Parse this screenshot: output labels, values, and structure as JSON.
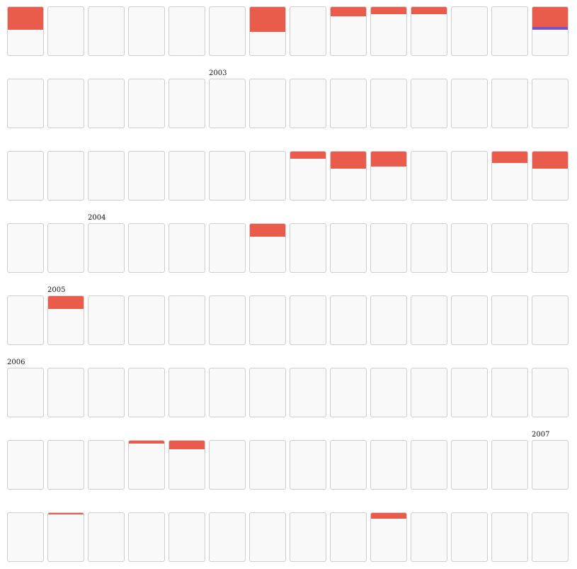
{
  "chart_data": {
    "type": "heatmap",
    "title": "",
    "columns": 14,
    "rows": 8,
    "colors": {
      "primary": "#e95c4b",
      "secondary": "#7b52c3",
      "cell_background": "#f9f9f9",
      "cell_border": "#cdcdcd"
    },
    "values": [
      [
        0.46,
        0,
        0,
        0,
        0,
        0,
        0.5,
        0,
        0.19,
        0.14,
        0.14,
        0,
        0,
        0.4
      ],
      [
        0,
        0,
        0,
        0,
        0,
        0,
        0,
        0,
        0,
        0,
        0,
        0,
        0,
        0
      ],
      [
        0,
        0,
        0,
        0,
        0,
        0,
        0,
        0.14,
        0.34,
        0.3,
        0,
        0,
        0.23,
        0.34
      ],
      [
        0,
        0,
        0,
        0,
        0,
        0,
        0.26,
        0,
        0,
        0,
        0,
        0,
        0,
        0
      ],
      [
        0,
        0.26,
        0,
        0,
        0,
        0,
        0,
        0,
        0,
        0,
        0,
        0,
        0,
        0
      ],
      [
        0,
        0,
        0,
        0,
        0,
        0,
        0,
        0,
        0,
        0,
        0,
        0,
        0,
        0
      ],
      [
        0,
        0,
        0,
        0.06,
        0.17,
        0,
        0,
        0,
        0,
        0,
        0,
        0,
        0,
        0
      ],
      [
        0,
        0.03,
        0,
        0,
        0,
        0,
        0,
        0,
        0,
        0.11,
        0,
        0,
        0,
        0
      ]
    ],
    "secondary_values": [
      [
        0,
        0,
        0,
        0,
        0,
        0,
        0,
        0,
        0,
        0,
        0,
        0,
        0,
        0.06
      ],
      [
        0,
        0,
        0,
        0,
        0,
        0,
        0,
        0,
        0,
        0,
        0,
        0,
        0,
        0
      ],
      [
        0,
        0,
        0,
        0,
        0,
        0,
        0,
        0,
        0,
        0,
        0,
        0,
        0,
        0
      ],
      [
        0,
        0,
        0,
        0,
        0,
        0,
        0,
        0,
        0,
        0,
        0,
        0,
        0,
        0
      ],
      [
        0,
        0,
        0,
        0,
        0,
        0,
        0,
        0,
        0,
        0,
        0,
        0,
        0,
        0
      ],
      [
        0,
        0,
        0,
        0,
        0,
        0,
        0,
        0,
        0,
        0,
        0,
        0,
        0,
        0
      ],
      [
        0,
        0,
        0,
        0,
        0,
        0,
        0,
        0,
        0,
        0,
        0,
        0,
        0,
        0
      ],
      [
        0,
        0,
        0,
        0,
        0,
        0,
        0,
        0,
        0,
        0,
        0,
        0,
        0,
        0
      ]
    ],
    "year_labels": [
      {
        "text": "2003",
        "row": 1,
        "col": 5
      },
      {
        "text": "2004",
        "row": 3,
        "col": 2
      },
      {
        "text": "2005",
        "row": 4,
        "col": 1
      },
      {
        "text": "2006",
        "row": 5,
        "col": 0
      },
      {
        "text": "2007",
        "row": 6,
        "col": 13
      }
    ]
  }
}
